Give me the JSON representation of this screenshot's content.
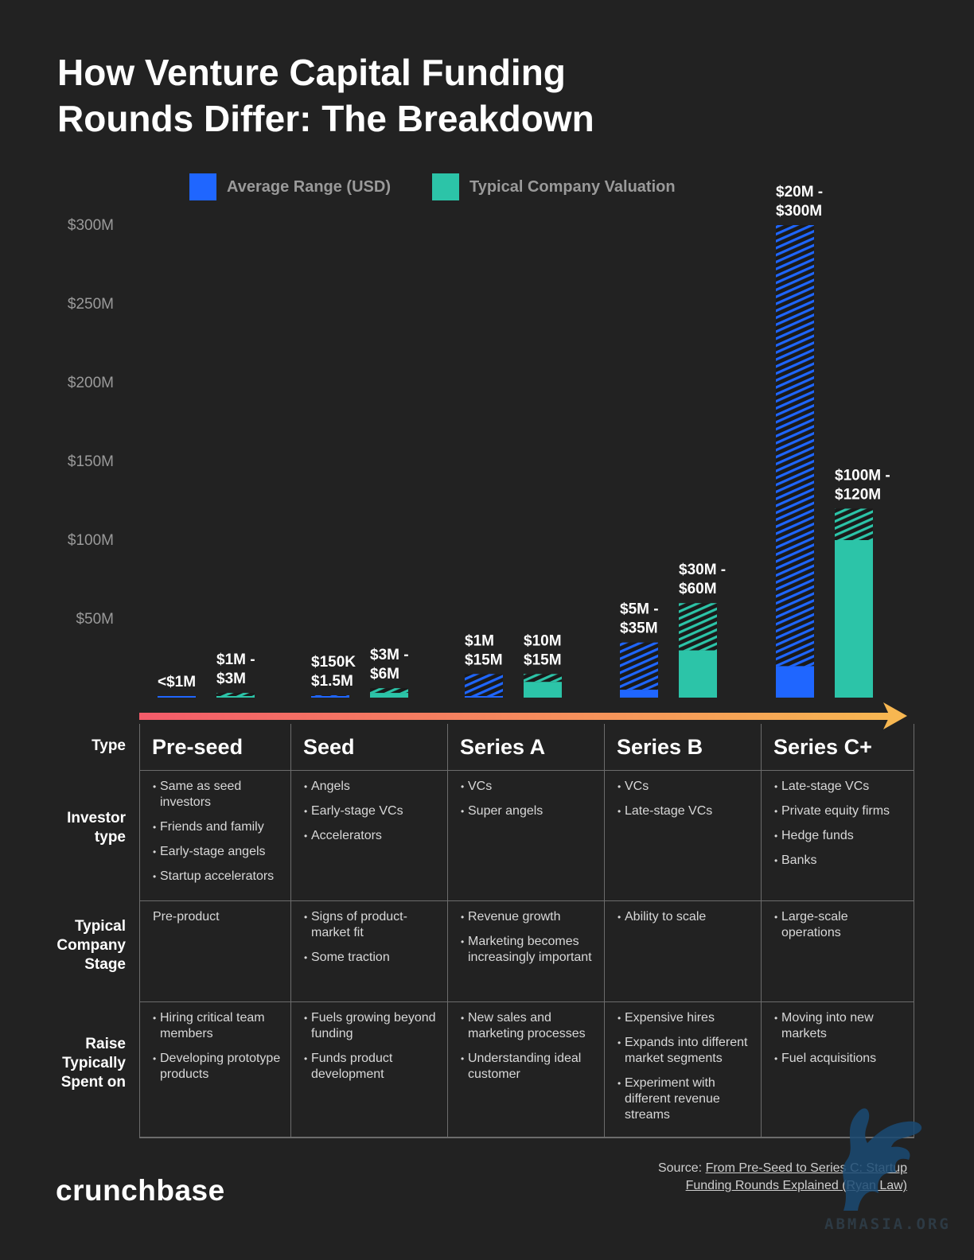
{
  "title": "How Venture Capital Funding Rounds Differ: The Breakdown",
  "colors": {
    "average_range": "#1f66ff",
    "valuation": "#2cc4a8",
    "arrow_start": "#f45b6a",
    "arrow_end": "#f7b751",
    "background": "#222222"
  },
  "legend": [
    {
      "label": "Average Range (USD)",
      "color": "#1f66ff"
    },
    {
      "label": "Typical Company Valuation",
      "color": "#2cc4a8"
    }
  ],
  "chart_data": {
    "type": "bar",
    "categories": [
      "Pre-seed",
      "Seed",
      "Series A",
      "Series B",
      "Series C+"
    ],
    "ylim": [
      0,
      300
    ],
    "y_unit": "$M",
    "yticks": [
      "$50M",
      "$100M",
      "$150M",
      "$200M",
      "$250M",
      "$300M"
    ],
    "ytick_values": [
      50,
      100,
      150,
      200,
      250,
      300
    ],
    "grid": false,
    "legend_position": "top",
    "series": [
      {
        "name": "Average Range (USD)",
        "ranges": [
          [
            0,
            1
          ],
          [
            0.15,
            1.5
          ],
          [
            1,
            15
          ],
          [
            5,
            35
          ],
          [
            20,
            300
          ]
        ],
        "labels": [
          "<$1M",
          "$150K $1.5M",
          "$1M $15M",
          "$5M - $35M",
          "$20M - $300M"
        ]
      },
      {
        "name": "Typical Company Valuation",
        "ranges": [
          [
            1,
            3
          ],
          [
            3,
            6
          ],
          [
            10,
            15
          ],
          [
            30,
            60
          ],
          [
            100,
            120
          ]
        ],
        "labels": [
          "$1M - $3M",
          "$3M - $6M",
          "$10M $15M",
          "$30M - $60M",
          "$100M - $120M"
        ]
      }
    ]
  },
  "table": {
    "row_labels": [
      "Type",
      "Investor type",
      "Typical Company Stage",
      "Raise Typically Spent on"
    ],
    "columns": [
      {
        "type": "Pre-seed",
        "investors": [
          "Same as seed investors",
          "Friends and family",
          "Early-stage angels",
          "Startup accelerators"
        ],
        "stage_text": "Pre-product",
        "stage": [],
        "spent": [
          "Hiring critical team members",
          "Developing prototype products"
        ]
      },
      {
        "type": "Seed",
        "investors": [
          "Angels",
          "Early-stage VCs",
          "Accelerators"
        ],
        "stage_text": "",
        "stage": [
          "Signs of product-market fit",
          "Some traction"
        ],
        "spent": [
          "Fuels growing beyond funding",
          "Funds product development"
        ]
      },
      {
        "type": "Series A",
        "investors": [
          "VCs",
          "Super angels"
        ],
        "stage_text": "",
        "stage": [
          "Revenue growth",
          "Marketing becomes increasingly important"
        ],
        "spent": [
          "New sales and marketing processes",
          "Understanding ideal customer"
        ]
      },
      {
        "type": "Series B",
        "investors": [
          "VCs",
          "Late-stage VCs"
        ],
        "stage_text": "",
        "stage": [
          "Ability to scale"
        ],
        "spent": [
          "Expensive hires",
          "Expands into different market segments",
          "Experiment with different revenue streams"
        ]
      },
      {
        "type": "Series C+",
        "investors": [
          "Late-stage VCs",
          "Private equity firms",
          "Hedge funds",
          "Banks"
        ],
        "stage_text": "",
        "stage": [
          "Large-scale operations"
        ],
        "spent": [
          "Moving into new markets",
          "Fuel acquisitions"
        ]
      }
    ]
  },
  "logo": "crunchbase",
  "source": {
    "prefix": "Source: ",
    "link_text": "From Pre-Seed to Series C: Startup Funding Rounds Explained (Ryan Law)"
  },
  "watermark": "ABMASIA.ORG"
}
